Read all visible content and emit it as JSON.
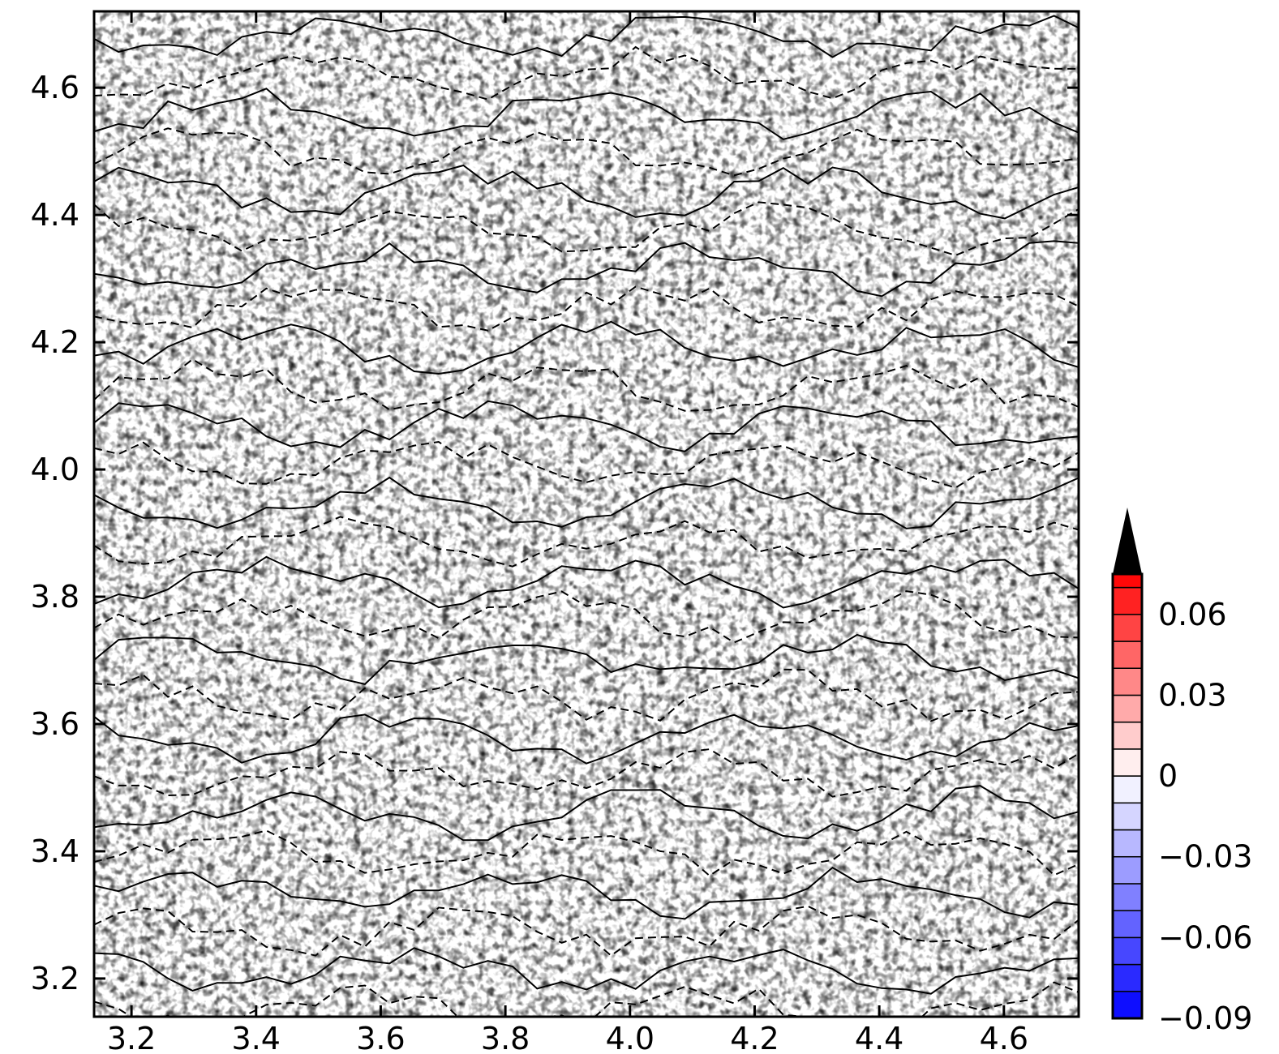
{
  "chart_data": {
    "type": "heatmap",
    "title": "",
    "xlabel": "",
    "ylabel": "",
    "xlim": [
      3.14,
      4.72
    ],
    "ylim": [
      3.14,
      4.72
    ],
    "x_ticks": [
      "3.2",
      "3.4",
      "3.6",
      "3.8",
      "4.0",
      "4.2",
      "4.4",
      "4.6"
    ],
    "y_ticks": [
      "3.2",
      "3.4",
      "3.6",
      "3.8",
      "4.0",
      "4.2",
      "4.4",
      "4.6"
    ],
    "field_description_values_range": [
      -0.09,
      0.075
    ],
    "contours": {
      "solid": "positive level",
      "dashed": "negative level"
    },
    "colorbar": {
      "min": -0.09,
      "max": 0.075,
      "extend": "max",
      "levels": [
        -0.09,
        -0.08,
        -0.07,
        -0.06,
        -0.05,
        -0.04,
        -0.03,
        -0.02,
        -0.01,
        0,
        0.01,
        0.02,
        0.03,
        0.04,
        0.05,
        0.06,
        0.07,
        0.075
      ],
      "tick_labels": [
        "0.06",
        "0.03",
        "0",
        "−0.03",
        "−0.06",
        "−0.09"
      ],
      "tick_values": [
        0.06,
        0.03,
        0,
        -0.03,
        -0.06,
        -0.09
      ],
      "colors": {
        "negative": "#0000ff",
        "zero": "#ffffff",
        "positive": "#ff0000",
        "extend": "#000000"
      }
    }
  }
}
